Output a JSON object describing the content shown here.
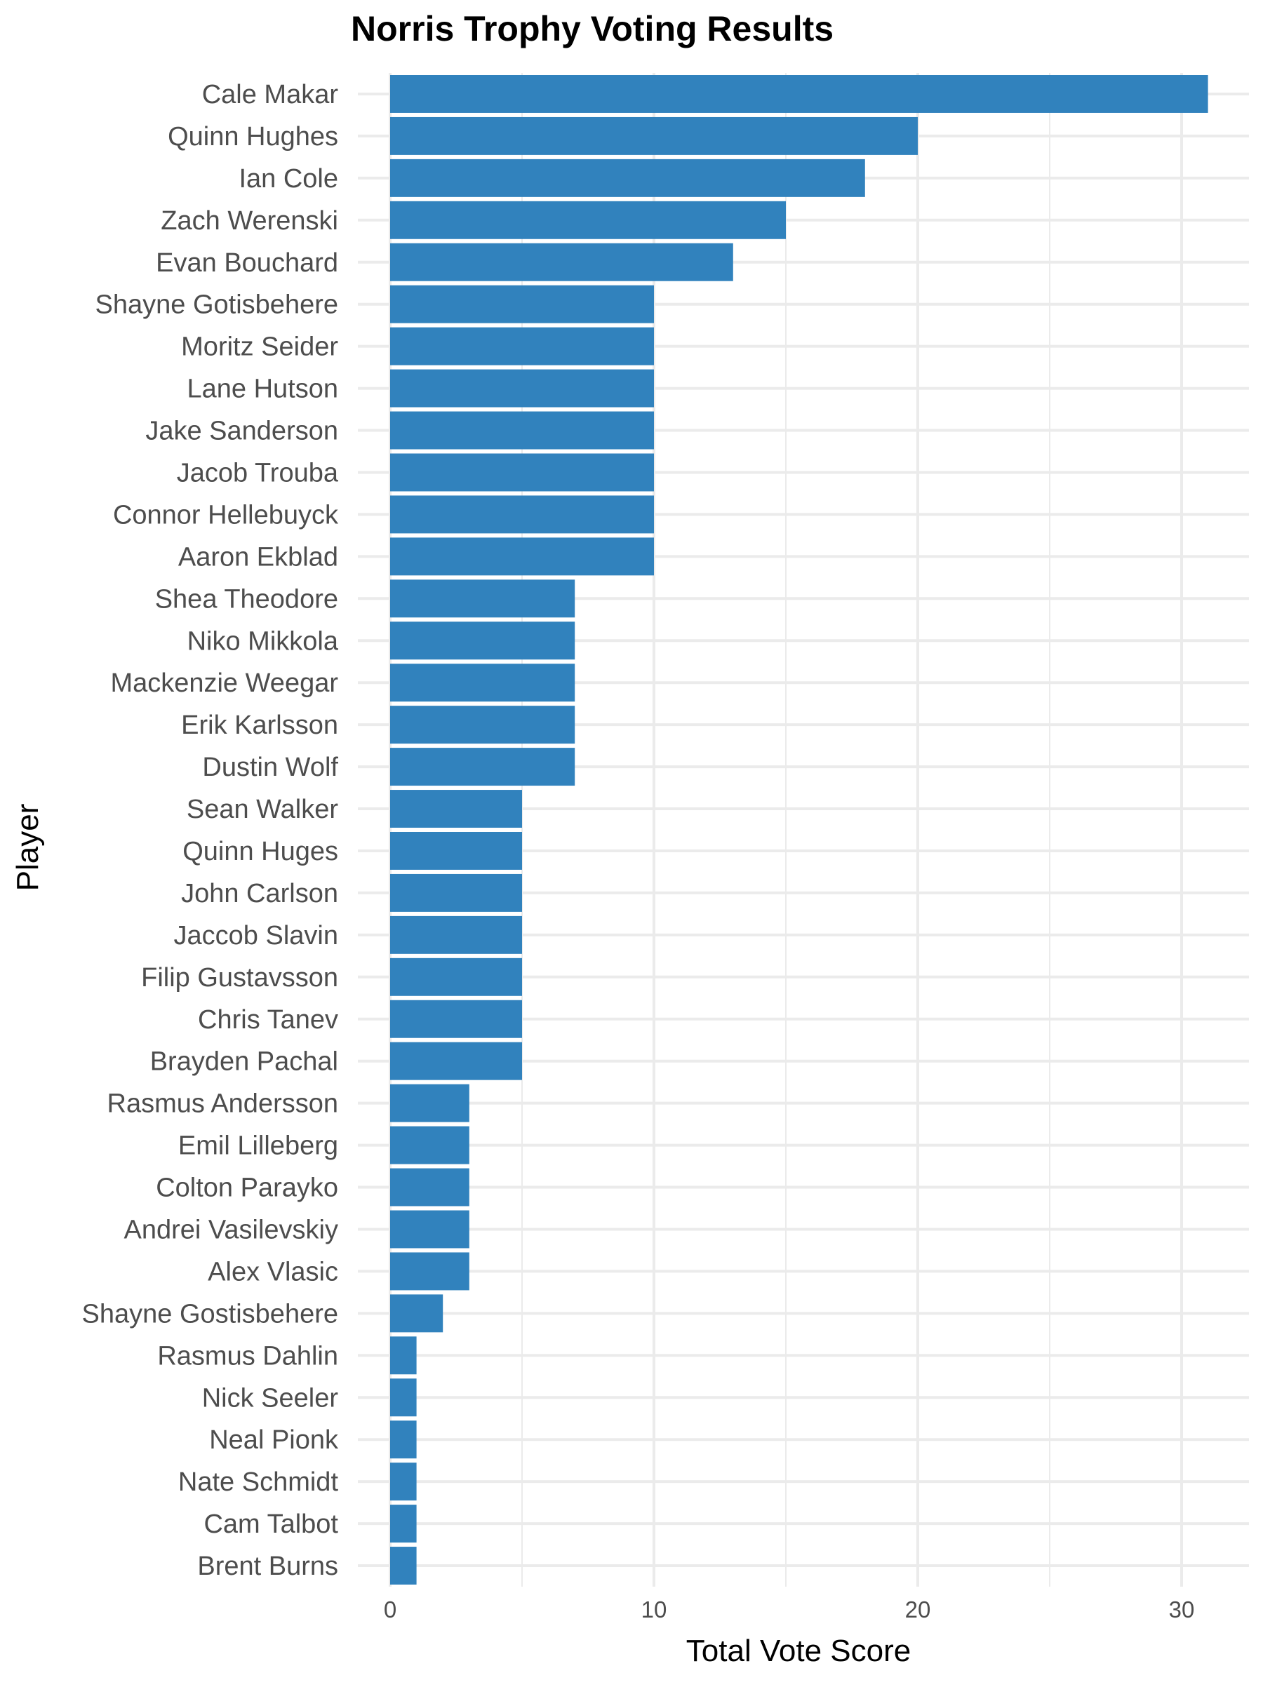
{
  "chart_data": {
    "type": "bar",
    "orientation": "horizontal",
    "title": "Norris Trophy Voting Results",
    "xlabel": "Total Vote Score",
    "ylabel": "Player",
    "xlim": [
      0,
      31.5
    ],
    "xticks": [
      0,
      10,
      20,
      30
    ],
    "grid": true,
    "bar_color": "#3182bd",
    "categories": [
      "Cale Makar",
      "Quinn Hughes",
      "Ian Cole",
      "Zach Werenski",
      "Evan Bouchard",
      "Shayne Gotisbehere",
      "Moritz Seider",
      "Lane Hutson",
      "Jake Sanderson",
      "Jacob Trouba",
      "Connor Hellebuyck",
      "Aaron Ekblad",
      "Shea Theodore",
      "Niko Mikkola",
      "Mackenzie Weegar",
      "Erik Karlsson",
      "Dustin Wolf",
      "Sean Walker",
      "Quinn Huges",
      "John Carlson",
      "Jaccob Slavin",
      "Filip Gustavsson",
      "Chris Tanev",
      "Brayden Pachal",
      "Rasmus Andersson",
      "Emil Lilleberg",
      "Colton Parayko",
      "Andrei Vasilevskiy",
      "Alex Vlasic",
      "Shayne Gostisbehere",
      "Rasmus Dahlin",
      "Nick Seeler",
      "Neal Pionk",
      "Nate Schmidt",
      "Cam Talbot",
      "Brent Burns"
    ],
    "values": [
      31,
      20,
      18,
      15,
      13,
      10,
      10,
      10,
      10,
      10,
      10,
      10,
      7,
      7,
      7,
      7,
      7,
      5,
      5,
      5,
      5,
      5,
      5,
      5,
      3,
      3,
      3,
      3,
      3,
      2,
      1,
      1,
      1,
      1,
      1,
      1
    ]
  }
}
